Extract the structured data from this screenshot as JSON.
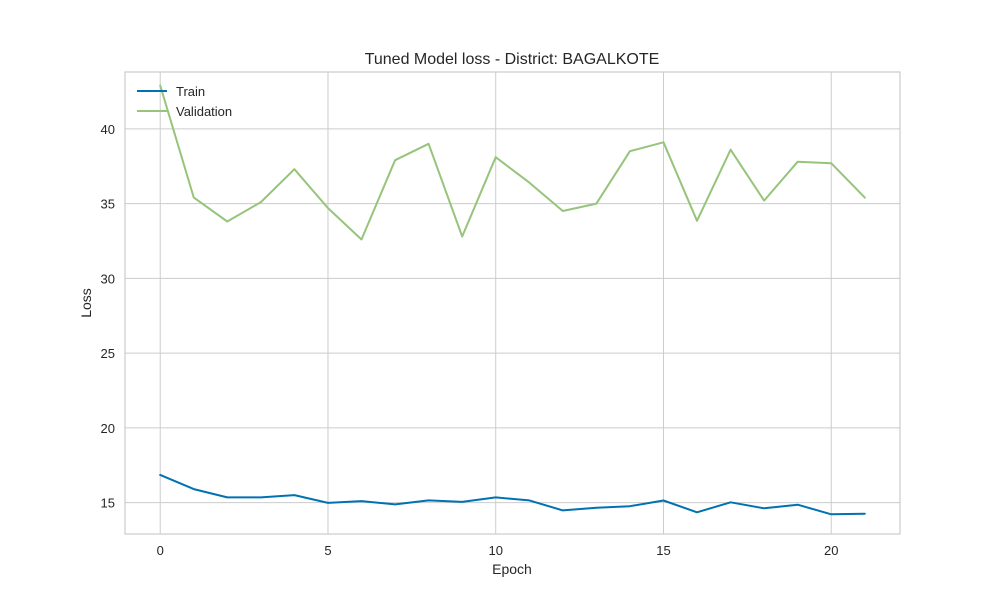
{
  "chart_data": {
    "type": "line",
    "title": "Tuned Model loss - District: BAGALKOTE",
    "xlabel": "Epoch",
    "ylabel": "Loss",
    "xlim": [
      -1.05,
      22.05
    ],
    "ylim": [
      12.9,
      43.8
    ],
    "xticks": [
      0,
      5,
      10,
      15,
      20
    ],
    "yticks": [
      15,
      20,
      25,
      30,
      35,
      40
    ],
    "grid": true,
    "legend_position": "top-left",
    "x": [
      0,
      1,
      2,
      3,
      4,
      5,
      6,
      7,
      8,
      9,
      10,
      11,
      12,
      13,
      14,
      15,
      16,
      17,
      18,
      19,
      20,
      21
    ],
    "series": [
      {
        "name": "Train",
        "color": "#0072b2",
        "values": [
          16.85,
          15.9,
          15.35,
          15.35,
          15.5,
          14.98,
          15.1,
          14.88,
          15.15,
          15.05,
          15.35,
          15.15,
          14.48,
          14.66,
          14.76,
          15.14,
          14.35,
          15.02,
          14.62,
          14.86,
          14.22,
          14.26
        ]
      },
      {
        "name": "Validation",
        "color": "#96c47a",
        "values": [
          42.9,
          35.4,
          33.8,
          35.1,
          37.3,
          34.7,
          32.6,
          37.9,
          39.0,
          32.8,
          38.1,
          36.4,
          34.5,
          35.0,
          38.5,
          39.1,
          33.85,
          38.6,
          35.2,
          37.8,
          37.7,
          35.4
        ]
      }
    ]
  }
}
